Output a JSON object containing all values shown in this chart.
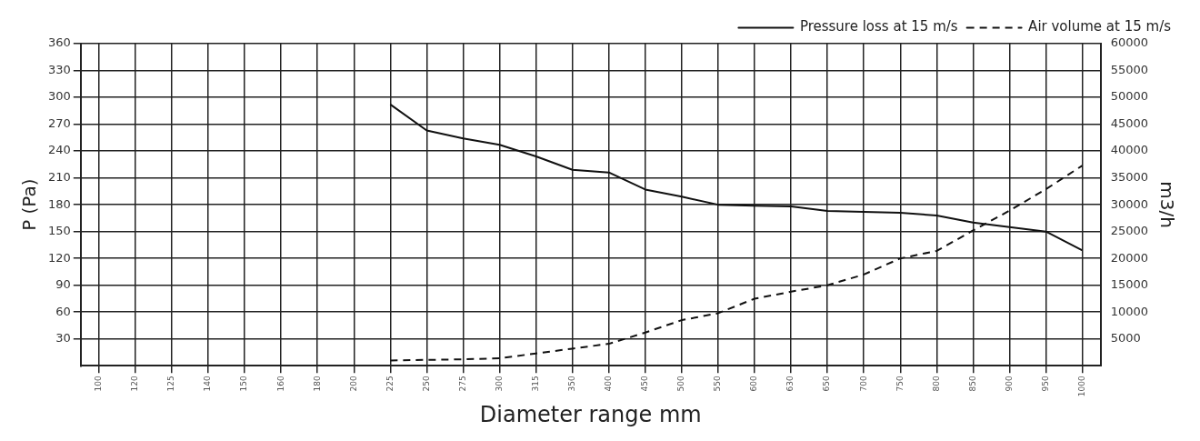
{
  "chart_data": {
    "type": "line",
    "xlabel": "Diameter range mm",
    "ylabel": "P (Pa)",
    "y2label": "m3/h",
    "categories": [
      "100",
      "120",
      "125",
      "140",
      "150",
      "160",
      "180",
      "200",
      "225",
      "250",
      "275",
      "300",
      "315",
      "350",
      "400",
      "450",
      "500",
      "550",
      "600",
      "630",
      "650",
      "700",
      "750",
      "800",
      "850",
      "900",
      "950",
      "1000"
    ],
    "series": [
      {
        "name": "Pressure loss at 15 m/s",
        "color": "#111111",
        "line_style": "solid",
        "values": [
          null,
          null,
          null,
          null,
          null,
          null,
          null,
          null,
          292,
          263,
          254,
          247,
          234,
          219,
          216,
          197,
          189,
          180,
          179,
          178,
          173,
          172,
          171,
          168,
          160,
          155,
          150,
          129
        ]
      },
      {
        "name": "Air volume at 15 m/s",
        "color": "#111111",
        "line_style": "dashed",
        "axis": "y2",
        "values": [
          null,
          null,
          null,
          null,
          null,
          null,
          null,
          null,
          1000,
          1100,
          1200,
          1400,
          2300,
          3200,
          4100,
          6200,
          8500,
          9800,
          12500,
          13800,
          15000,
          17000,
          20000,
          21400,
          25200,
          28900,
          32900,
          37300
        ]
      }
    ],
    "ylim": [
      0,
      360
    ],
    "yticks": [
      30,
      60,
      90,
      120,
      150,
      180,
      210,
      240,
      270,
      300,
      330,
      360
    ],
    "y2lim": [
      0,
      60000
    ],
    "y2ticks": [
      5000,
      10000,
      15000,
      20000,
      25000,
      30000,
      35000,
      40000,
      45000,
      50000,
      55000,
      60000
    ],
    "grid": true,
    "legend": "top right",
    "marker": "none"
  }
}
